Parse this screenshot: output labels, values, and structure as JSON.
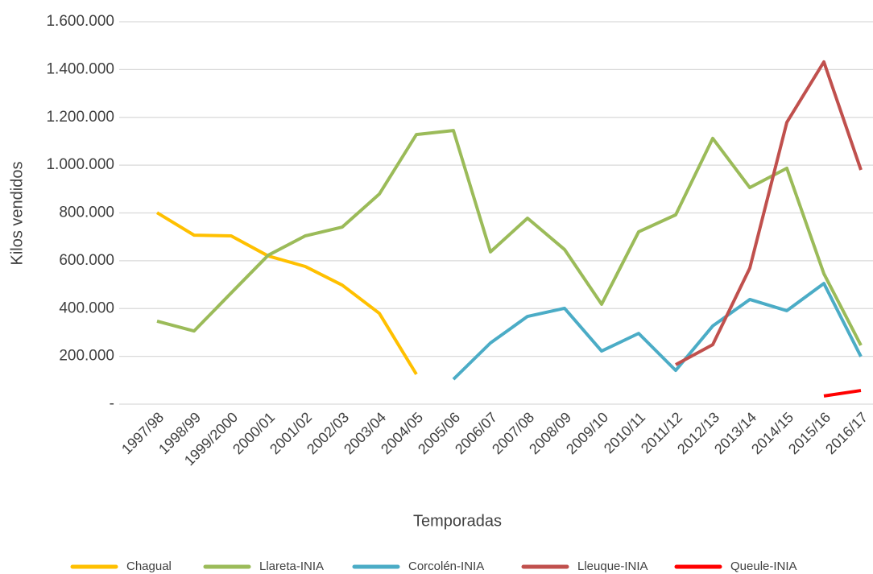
{
  "chart_data": {
    "type": "line",
    "x_label": "Temporadas",
    "y_label": "Kilos vendidos",
    "categories": [
      "1997/98",
      "1998/99",
      "1999/2000",
      "2000/01",
      "2001/02",
      "2002/03",
      "2003/04",
      "2004/05",
      "2005/06",
      "2006/07",
      "2007/08",
      "2008/09",
      "2009/10",
      "2010/11",
      "2011/12",
      "2012/13",
      "2013/14",
      "2014/15",
      "2015/16",
      "2016/17"
    ],
    "series": [
      {
        "name": "Chagual",
        "color": "#ffc000",
        "values": [
          801000,
          707000,
          704000,
          620000,
          576000,
          498000,
          380000,
          125000,
          null,
          null,
          null,
          null,
          null,
          null,
          null,
          null,
          null,
          null,
          null,
          null
        ]
      },
      {
        "name": "Llareta-INIA",
        "color": "#9bbb59",
        "values": [
          347000,
          306000,
          465000,
          623000,
          704000,
          741000,
          879000,
          1128000,
          1145000,
          637000,
          778000,
          647000,
          418000,
          721000,
          792000,
          1112000,
          906000,
          987000,
          546000,
          246000
        ]
      },
      {
        "name": "Corcolén-INIA",
        "color": "#4bacc6",
        "values": [
          null,
          null,
          null,
          null,
          null,
          null,
          null,
          null,
          104000,
          256000,
          367000,
          401000,
          222000,
          296000,
          141000,
          327000,
          438000,
          391000,
          505000,
          199000
        ]
      },
      {
        "name": "Lleuque-INIA",
        "color": "#c0504d",
        "values": [
          null,
          null,
          null,
          null,
          null,
          null,
          null,
          null,
          null,
          null,
          null,
          null,
          null,
          null,
          165000,
          249000,
          569000,
          1179000,
          1432000,
          980000
        ]
      },
      {
        "name": "Queule-INIA",
        "color": "#ff0000",
        "values": [
          null,
          null,
          null,
          null,
          null,
          null,
          null,
          null,
          null,
          null,
          null,
          null,
          null,
          null,
          null,
          null,
          null,
          null,
          34000,
          57000
        ]
      }
    ],
    "ylim": [
      0,
      1600000
    ],
    "yticks": [
      {
        "value": 0,
        "label": "-"
      },
      {
        "value": 200000,
        "label": "200.000"
      },
      {
        "value": 400000,
        "label": "400.000"
      },
      {
        "value": 600000,
        "label": "600.000"
      },
      {
        "value": 800000,
        "label": "800.000"
      },
      {
        "value": 1000000,
        "label": "1.000.000"
      },
      {
        "value": 1200000,
        "label": "1.200.000"
      },
      {
        "value": 1400000,
        "label": "1.400.000"
      },
      {
        "value": 1600000,
        "label": "1.600.000"
      }
    ],
    "grid": true,
    "legend": "bottom"
  }
}
